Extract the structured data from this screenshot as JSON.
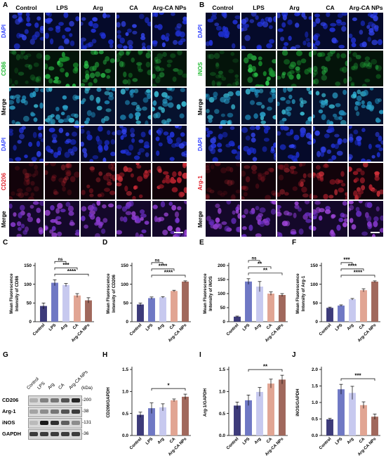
{
  "panels": {
    "A": "A",
    "B": "B",
    "C": "C",
    "D": "D",
    "E": "E",
    "F": "F",
    "G": "G",
    "H": "H",
    "I": "I",
    "J": "J"
  },
  "groups": [
    "Control",
    "LPS",
    "Arg",
    "CA",
    "Arg-CA NPs"
  ],
  "bar_colors": [
    "#3d3b7a",
    "#6f78c4",
    "#c7c9ef",
    "#e1a593",
    "#a0685c"
  ],
  "panel_A": {
    "rows": [
      {
        "label": "DAPI",
        "color": "#3344ff",
        "kind": "blue"
      },
      {
        "label": "CD86",
        "color": "#22bb33",
        "kind": "green"
      },
      {
        "label": "Merge",
        "color": "#000000",
        "kind": "merge-blue"
      },
      {
        "label": "DAPI",
        "color": "#3344ff",
        "kind": "blue"
      },
      {
        "label": "CD206",
        "color": "#e0202a",
        "kind": "red"
      },
      {
        "label": "Merge",
        "color": "#000000",
        "kind": "merge-purple"
      }
    ]
  },
  "panel_B": {
    "rows": [
      {
        "label": "DAPI",
        "color": "#3344ff",
        "kind": "blue"
      },
      {
        "label": "iNOS",
        "color": "#22bb33",
        "kind": "green"
      },
      {
        "label": "Merge",
        "color": "#000000",
        "kind": "merge-blue"
      },
      {
        "label": "DAPI",
        "color": "#3344ff",
        "kind": "blue"
      },
      {
        "label": "Arg-1",
        "color": "#e0202a",
        "kind": "red"
      },
      {
        "label": "Merge",
        "color": "#000000",
        "kind": "merge-purple"
      }
    ]
  },
  "western_blot": {
    "unit_label": "(kDa)",
    "lanes": [
      "Control",
      "LPS",
      "Arg",
      "CA",
      "Arg-CA NPs"
    ],
    "bands": [
      {
        "name": "CD206",
        "size": "200"
      },
      {
        "name": "Arg-1",
        "size": "38"
      },
      {
        "name": "iNOS",
        "size": "131"
      },
      {
        "name": "GAPDH",
        "size": "36"
      }
    ]
  },
  "chart_data": [
    {
      "panel": "C",
      "type": "bar",
      "ylabel": "Mean Fluorescence\nIntensity of CD86",
      "categories": [
        "Control",
        "LPS",
        "Arg",
        "CA",
        "Arg-CA NPs"
      ],
      "values": [
        42,
        104,
        98,
        70,
        57
      ],
      "errors": [
        8,
        8,
        4,
        5,
        7
      ],
      "ylim": [
        0,
        150
      ],
      "yticks": [
        0,
        50,
        100,
        150
      ],
      "annotations": [
        {
          "from": 1,
          "to": 2,
          "text": "ns"
        },
        {
          "from": 1,
          "to": 3,
          "text": "***"
        },
        {
          "from": 1,
          "to": 4,
          "text": "****"
        }
      ]
    },
    {
      "panel": "D",
      "type": "bar",
      "ylabel": "Mean Fluorescence\nIntensity of CD206",
      "categories": [
        "Control",
        "LPS",
        "Arg",
        "CA",
        "Arg-CA NPs"
      ],
      "values": [
        46,
        63,
        65,
        82,
        107
      ],
      "errors": [
        4,
        3,
        2,
        2,
        2
      ],
      "ylim": [
        0,
        150
      ],
      "yticks": [
        0,
        50,
        100,
        150
      ],
      "annotations": [
        {
          "from": 1,
          "to": 2,
          "text": "ns"
        },
        {
          "from": 1,
          "to": 3,
          "text": "****"
        },
        {
          "from": 1,
          "to": 4,
          "text": "****"
        }
      ]
    },
    {
      "panel": "E",
      "type": "bar",
      "ylabel": "Mean Fluorescence\nIntensity of iNOS",
      "categories": [
        "Control",
        "LPS",
        "Arg",
        "CA",
        "Arg-CA NPs"
      ],
      "values": [
        18,
        143,
        125,
        100,
        95
      ],
      "errors": [
        2,
        10,
        18,
        6,
        5
      ],
      "ylim": [
        0,
        200
      ],
      "yticks": [
        0,
        50,
        100,
        150,
        200
      ],
      "annotations": [
        {
          "from": 1,
          "to": 2,
          "text": "ns"
        },
        {
          "from": 1,
          "to": 3,
          "text": "**"
        },
        {
          "from": 1,
          "to": 4,
          "text": "**"
        }
      ]
    },
    {
      "panel": "F",
      "type": "bar",
      "ylabel": "Mean Fluorescence\nIntensity of Arg-1",
      "categories": [
        "Control",
        "LPS",
        "Arg",
        "CA",
        "Arg-CA NPs"
      ],
      "values": [
        37,
        43,
        60,
        84,
        107
      ],
      "errors": [
        2,
        2,
        2,
        4,
        2
      ],
      "ylim": [
        0,
        150
      ],
      "yticks": [
        0,
        50,
        100,
        150
      ],
      "annotations": [
        {
          "from": 1,
          "to": 2,
          "text": "***"
        },
        {
          "from": 1,
          "to": 3,
          "text": "****"
        },
        {
          "from": 1,
          "to": 4,
          "text": "****"
        }
      ]
    },
    {
      "panel": "H",
      "type": "bar",
      "ylabel": "CD206/GAPDH",
      "categories": [
        "Control",
        "LPS",
        "Arg",
        "CA",
        "Arg-CA NPs"
      ],
      "values": [
        0.47,
        0.62,
        0.64,
        0.8,
        0.88
      ],
      "errors": [
        0.06,
        0.12,
        0.08,
        0.03,
        0.06
      ],
      "ylim": [
        0,
        1.5
      ],
      "yticks": [
        0,
        0.5,
        1.0,
        1.5
      ],
      "ytick_labels": [
        "0.0",
        "0.5",
        "1.0",
        "1.5"
      ],
      "annotations": [
        {
          "from": 1,
          "to": 4,
          "text": "*"
        }
      ]
    },
    {
      "panel": "I",
      "type": "bar",
      "ylabel": "Arg-1/GAPDH",
      "categories": [
        "Control",
        "LPS",
        "Arg",
        "CA",
        "Arg-CA NPs"
      ],
      "values": [
        0.68,
        0.8,
        0.99,
        1.18,
        1.27
      ],
      "errors": [
        0.08,
        0.12,
        0.1,
        0.1,
        0.1
      ],
      "ylim": [
        0,
        1.5
      ],
      "yticks": [
        0,
        0.5,
        1.0,
        1.5
      ],
      "ytick_labels": [
        "0.0",
        "0.5",
        "1.0",
        "1.5"
      ],
      "annotations": [
        {
          "from": 1,
          "to": 4,
          "text": "**"
        }
      ]
    },
    {
      "panel": "J",
      "type": "bar",
      "ylabel": "iNOS/GAPDH",
      "categories": [
        "Control",
        "LPS",
        "Arg",
        "CA",
        "Arg-CA NPs"
      ],
      "values": [
        0.49,
        1.4,
        1.29,
        0.92,
        0.57
      ],
      "errors": [
        0.03,
        0.15,
        0.2,
        0.1,
        0.08
      ],
      "ylim": [
        0,
        2.0
      ],
      "yticks": [
        0,
        0.5,
        1.0,
        1.5,
        2.0
      ],
      "ytick_labels": [
        "0.0",
        "0.5",
        "1.0",
        "1.5",
        "2.0"
      ],
      "annotations": [
        {
          "from": 1,
          "to": 4,
          "text": "***"
        }
      ]
    }
  ]
}
